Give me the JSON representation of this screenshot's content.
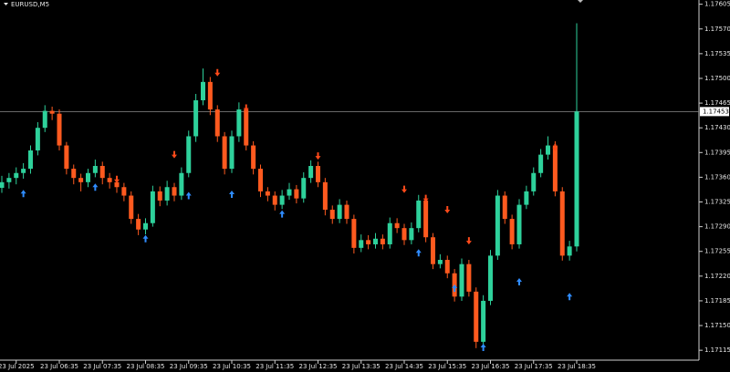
{
  "chart_data": {
    "type": "candlestick",
    "title": "EURUSD,M5",
    "categories": [
      null,
      null,
      "23 Jul 2025",
      null,
      null,
      null,
      null,
      null,
      "23 Jul 06:35",
      null,
      null,
      null,
      null,
      null,
      "23 Jul 07:35",
      null,
      null,
      null,
      null,
      null,
      "23 Jul 08:35",
      null,
      null,
      null,
      null,
      null,
      "23 Jul 09:35",
      null,
      null,
      null,
      null,
      null,
      "23 Jul 10:35",
      null,
      null,
      null,
      null,
      null,
      "23 Jul 11:35",
      null,
      null,
      null,
      null,
      null,
      "23 Jul 12:35",
      null,
      null,
      null,
      null,
      null,
      "23 Jul 13:35",
      null,
      null,
      null,
      null,
      null,
      "23 Jul 14:35",
      null,
      null,
      null,
      null,
      null,
      "23 Jul 15:35",
      null,
      null,
      null,
      null,
      null,
      "23 Jul 16:35",
      null,
      null,
      null,
      null,
      null,
      "23 Jul 17:35",
      null,
      null,
      null,
      null,
      null,
      "23 Jul 18:35"
    ],
    "ohlc": [
      [
        1.17345,
        1.17362,
        1.17338,
        1.17353
      ],
      [
        1.17353,
        1.17366,
        1.17344,
        1.17359
      ],
      [
        1.17359,
        1.17374,
        1.1735,
        1.17366
      ],
      [
        1.17366,
        1.1738,
        1.17358,
        1.17372
      ],
      [
        1.17372,
        1.17405,
        1.17365,
        1.17398
      ],
      [
        1.17398,
        1.17438,
        1.17391,
        1.1743
      ],
      [
        1.1743,
        1.17462,
        1.17424,
        1.17454
      ],
      [
        1.17454,
        1.1746,
        1.17441,
        1.1745
      ],
      [
        1.1745,
        1.17456,
        1.17398,
        1.17405
      ],
      [
        1.17405,
        1.1741,
        1.17364,
        1.17372
      ],
      [
        1.17372,
        1.17378,
        1.1735,
        1.17359
      ],
      [
        1.17359,
        1.17365,
        1.1734,
        1.17353
      ],
      [
        1.17353,
        1.17372,
        1.17346,
        1.17366
      ],
      [
        1.17366,
        1.17385,
        1.1736,
        1.17376
      ],
      [
        1.17376,
        1.17382,
        1.1735,
        1.17359
      ],
      [
        1.17359,
        1.17366,
        1.17344,
        1.17353
      ],
      [
        1.17353,
        1.1736,
        1.17338,
        1.17346
      ],
      [
        1.17346,
        1.17352,
        1.17326,
        1.17334
      ],
      [
        1.17334,
        1.1734,
        1.17294,
        1.17301
      ],
      [
        1.17301,
        1.17308,
        1.17278,
        1.17286
      ],
      [
        1.17286,
        1.17302,
        1.17279,
        1.17295
      ],
      [
        1.17295,
        1.17348,
        1.1729,
        1.1734
      ],
      [
        1.1734,
        1.17347,
        1.17319,
        1.17327
      ],
      [
        1.17327,
        1.17355,
        1.1732,
        1.17346
      ],
      [
        1.17346,
        1.17352,
        1.17326,
        1.17334
      ],
      [
        1.17334,
        1.17374,
        1.17328,
        1.17366
      ],
      [
        1.17366,
        1.17426,
        1.1736,
        1.17418
      ],
      [
        1.17418,
        1.17478,
        1.1741,
        1.17469
      ],
      [
        1.17469,
        1.17514,
        1.17462,
        1.17495
      ],
      [
        1.17495,
        1.17502,
        1.17448,
        1.17456
      ],
      [
        1.17456,
        1.17462,
        1.1741,
        1.17418
      ],
      [
        1.17418,
        1.17424,
        1.17364,
        1.17372
      ],
      [
        1.17372,
        1.17426,
        1.17366,
        1.17418
      ],
      [
        1.17418,
        1.17466,
        1.1741,
        1.17456
      ],
      [
        1.17456,
        1.17463,
        1.17398,
        1.17405
      ],
      [
        1.17405,
        1.17411,
        1.17364,
        1.17372
      ],
      [
        1.17372,
        1.17378,
        1.17332,
        1.1734
      ],
      [
        1.1734,
        1.17346,
        1.17326,
        1.17334
      ],
      [
        1.17334,
        1.1734,
        1.17313,
        1.17321
      ],
      [
        1.17321,
        1.17342,
        1.17315,
        1.17334
      ],
      [
        1.17334,
        1.17352,
        1.17328,
        1.17343
      ],
      [
        1.17343,
        1.17349,
        1.17323,
        1.1733
      ],
      [
        1.1733,
        1.17367,
        1.17324,
        1.17359
      ],
      [
        1.17359,
        1.17384,
        1.17352,
        1.17376
      ],
      [
        1.17376,
        1.17382,
        1.17346,
        1.17353
      ],
      [
        1.17353,
        1.17359,
        1.17306,
        1.17314
      ],
      [
        1.17314,
        1.1732,
        1.17294,
        1.17301
      ],
      [
        1.17301,
        1.17329,
        1.17295,
        1.17321
      ],
      [
        1.17321,
        1.17327,
        1.17294,
        1.17301
      ],
      [
        1.17301,
        1.17307,
        1.17252,
        1.1726
      ],
      [
        1.1726,
        1.17279,
        1.17254,
        1.17271
      ],
      [
        1.17271,
        1.17278,
        1.17258,
        1.17265
      ],
      [
        1.17265,
        1.17281,
        1.17259,
        1.17273
      ],
      [
        1.17273,
        1.17279,
        1.17258,
        1.17265
      ],
      [
        1.17265,
        1.17303,
        1.17259,
        1.17295
      ],
      [
        1.17295,
        1.17302,
        1.17281,
        1.17288
      ],
      [
        1.17288,
        1.17294,
        1.17264,
        1.17271
      ],
      [
        1.17271,
        1.17296,
        1.17265,
        1.17288
      ],
      [
        1.17288,
        1.17335,
        1.17282,
        1.17327
      ],
      [
        1.17327,
        1.17333,
        1.17268,
        1.17275
      ],
      [
        1.17275,
        1.17281,
        1.1723,
        1.17237
      ],
      [
        1.17237,
        1.17251,
        1.17231,
        1.17243
      ],
      [
        1.17243,
        1.17249,
        1.17217,
        1.17224
      ],
      [
        1.17224,
        1.1723,
        1.17184,
        1.17191
      ],
      [
        1.17191,
        1.17245,
        1.17185,
        1.17237
      ],
      [
        1.17237,
        1.17243,
        1.17191,
        1.17198
      ],
      [
        1.17198,
        1.17204,
        1.17118,
        1.17127
      ],
      [
        1.17127,
        1.17193,
        1.1712,
        1.17185
      ],
      [
        1.17185,
        1.17257,
        1.17179,
        1.17249
      ],
      [
        1.17249,
        1.17342,
        1.17243,
        1.17334
      ],
      [
        1.17334,
        1.1734,
        1.17294,
        1.17301
      ],
      [
        1.17301,
        1.17307,
        1.17258,
        1.17265
      ],
      [
        1.17265,
        1.17329,
        1.17259,
        1.17321
      ],
      [
        1.17321,
        1.17348,
        1.17315,
        1.1734
      ],
      [
        1.1734,
        1.17374,
        1.17334,
        1.17366
      ],
      [
        1.17366,
        1.174,
        1.1736,
        1.17392
      ],
      [
        1.17392,
        1.17418,
        1.17385,
        1.17405
      ],
      [
        1.17405,
        1.17411,
        1.17333,
        1.1734
      ],
      [
        1.1734,
        1.17346,
        1.17242,
        1.17249
      ],
      [
        1.17249,
        1.1727,
        1.17242,
        1.17262
      ],
      [
        1.17262,
        1.17578,
        1.17255,
        1.17453
      ]
    ],
    "up_color": "#2ed19b",
    "down_color": "#ff5a1f",
    "buy_signals": {
      "color": "#2f8cff",
      "x": [
        3,
        13,
        20,
        26,
        32,
        39,
        58,
        63,
        67,
        72,
        79
      ],
      "values": [
        1.17337,
        1.17346,
        1.17273,
        1.17334,
        1.17336,
        1.17308,
        1.17253,
        1.17203,
        1.17119,
        1.17212,
        1.17191
      ]
    },
    "sell_signals": {
      "color": "#ff4a1a",
      "x": [
        16,
        24,
        30,
        34,
        44,
        56,
        59,
        62,
        65,
        77
      ],
      "values": [
        1.17357,
        1.17392,
        1.17508,
        1.17458,
        1.1739,
        1.17343,
        1.1733,
        1.17314,
        1.1727,
        1.17402
      ]
    },
    "last_price": 1.17453,
    "ylim": [
      1.17101,
      1.17611
    ],
    "yticks": [
      1.17605,
      {
        "value": 1.1757,
        "label": "1.17570"
      },
      1.17535,
      {
        "value": 1.175,
        "label": "1.17500"
      },
      1.17465,
      {
        "value": 1.1743,
        "label": "1.17430"
      },
      1.17395,
      {
        "value": 1.1736,
        "label": "1.17360"
      },
      1.17325,
      {
        "value": 1.1729,
        "label": "1.17290"
      },
      1.17255,
      {
        "value": 1.1722,
        "label": "1.17220"
      },
      1.17185,
      {
        "value": 1.1715,
        "label": "1.17150"
      },
      1.17115
    ],
    "grid": false
  }
}
